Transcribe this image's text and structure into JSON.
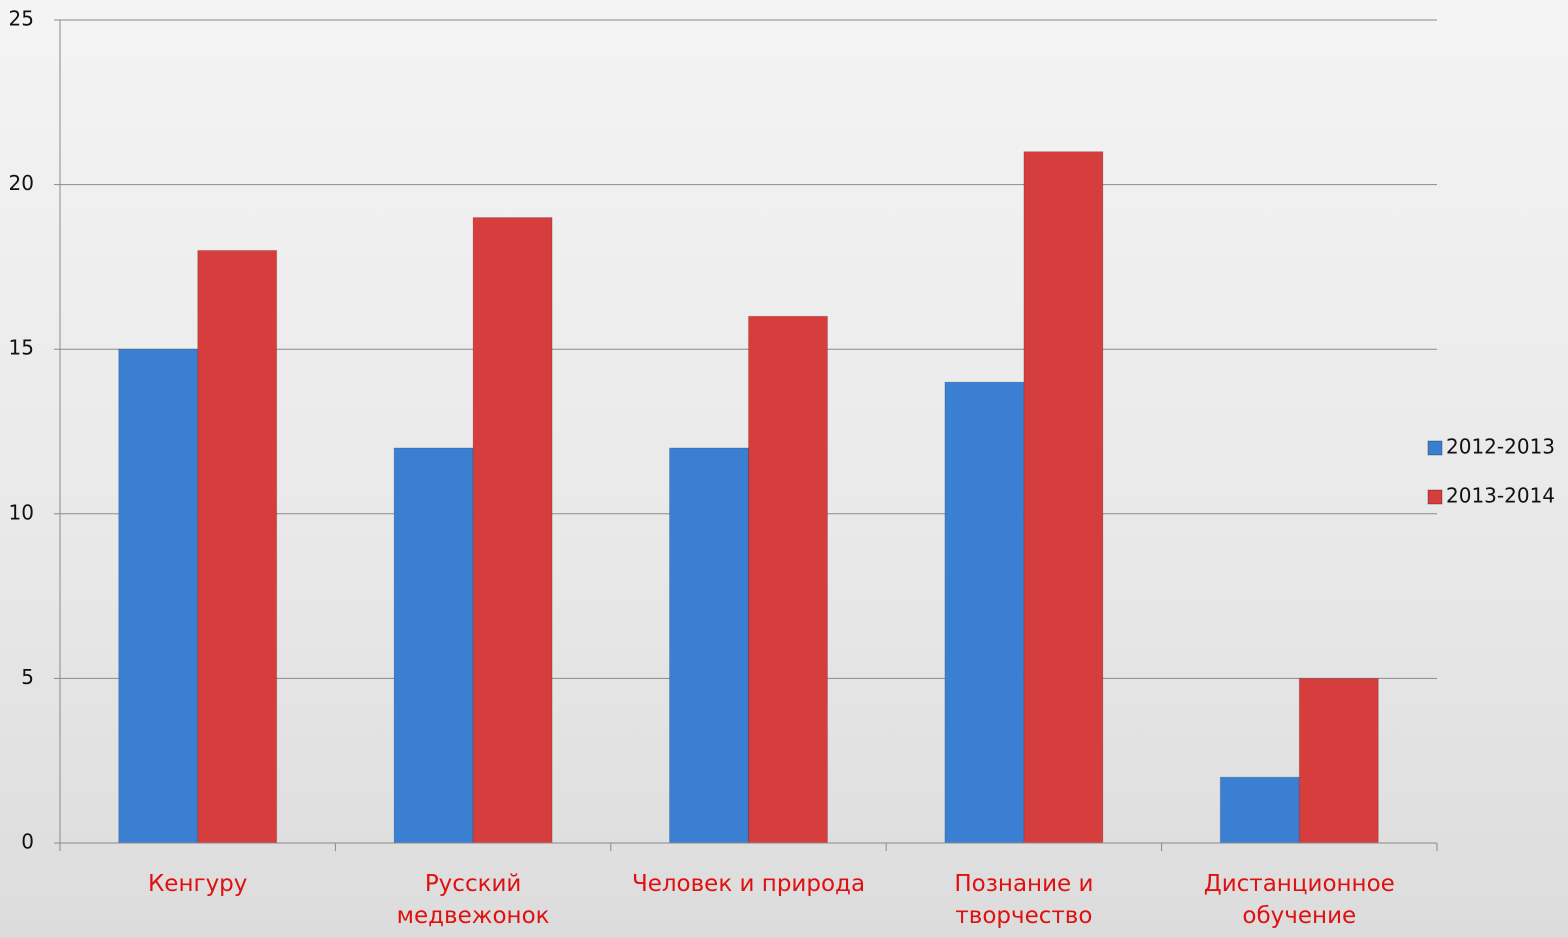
{
  "chart_data": {
    "type": "bar",
    "categories": [
      "Кенгуру",
      "Русский\nмедвежонок",
      "Человек и природа",
      "Познание и\nтворчество",
      "Дистанционное\nобучение"
    ],
    "series": [
      {
        "name": "2012-2013",
        "color": "#3b7fd2",
        "values": [
          15,
          12,
          12,
          14,
          2
        ]
      },
      {
        "name": "2013-2014",
        "color": "#d63d3d",
        "values": [
          18,
          19,
          16,
          21,
          5
        ]
      }
    ],
    "ylim": [
      0,
      25
    ],
    "yticks": [
      0,
      5,
      10,
      15,
      20,
      25
    ],
    "grid": true,
    "legend": "right"
  }
}
